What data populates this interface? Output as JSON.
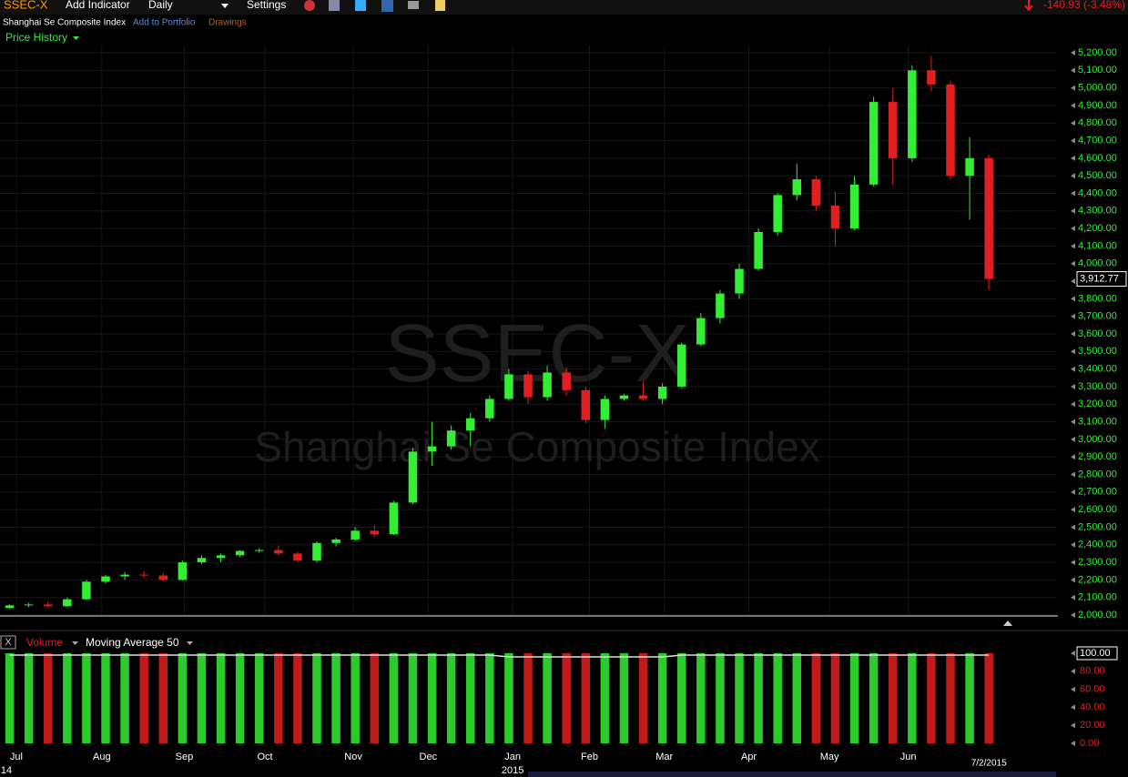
{
  "toolbar": {
    "symbol": "SSEC-X",
    "add_indicator": "Add Indicator",
    "interval": "Daily",
    "settings": "Settings",
    "change": "-140.93 (-3.48%)",
    "add_to_portfolio": "Add to Portfolio",
    "drawings": "Drawings",
    "price_history": "Price History"
  },
  "chart_data": {
    "type": "candlestick",
    "title": "SSEC-X",
    "subtitle": "Shanghai Se Composite Index",
    "x": [
      0,
      1,
      2,
      3,
      4,
      5,
      6,
      7,
      8,
      9,
      10,
      11,
      12,
      13,
      14,
      15,
      16,
      17,
      18,
      19,
      20,
      21,
      22,
      23,
      24,
      25,
      26,
      27,
      28,
      29,
      30,
      31,
      32,
      33,
      34,
      35,
      36,
      37,
      38,
      39,
      40,
      41,
      42,
      43,
      44,
      45,
      46,
      47,
      48,
      49,
      50,
      51
    ],
    "open": [
      2040,
      2055,
      2060,
      2050,
      2090,
      2190,
      2220,
      2230,
      2225,
      2200,
      2300,
      2325,
      2340,
      2365,
      2370,
      2350,
      2310,
      2410,
      2430,
      2480,
      2460,
      2640,
      2930,
      2960,
      3050,
      3120,
      3230,
      3370,
      3240,
      3380,
      3280,
      3110,
      3230,
      3250,
      3230,
      3300,
      3540,
      3690,
      3830,
      3970,
      4180,
      4390,
      4480,
      4330,
      4200,
      4450,
      4920,
      4600,
      5100,
      5020,
      4500,
      4600
    ],
    "high": [
      2060,
      2070,
      2075,
      2100,
      2200,
      2230,
      2245,
      2250,
      2240,
      2310,
      2340,
      2350,
      2370,
      2380,
      2395,
      2360,
      2420,
      2440,
      2500,
      2510,
      2650,
      2950,
      3100,
      3080,
      3150,
      3250,
      3400,
      3390,
      3420,
      3410,
      3300,
      3250,
      3260,
      3330,
      3320,
      3550,
      3720,
      3850,
      4000,
      4200,
      4400,
      4570,
      4500,
      4410,
      4500,
      4950,
      5000,
      5130,
      5180,
      5040,
      4720,
      4620
    ],
    "low": [
      2035,
      2045,
      2040,
      2045,
      2085,
      2180,
      2200,
      2210,
      2190,
      2195,
      2290,
      2300,
      2330,
      2355,
      2340,
      2300,
      2300,
      2390,
      2420,
      2440,
      2455,
      2630,
      2850,
      2940,
      2960,
      3100,
      3220,
      3200,
      3220,
      3250,
      3090,
      3060,
      3220,
      3220,
      3200,
      3290,
      3530,
      3660,
      3800,
      3960,
      4160,
      4360,
      4300,
      4100,
      4190,
      4440,
      4450,
      4580,
      4980,
      4480,
      4250,
      3850
    ],
    "close": [
      2055,
      2060,
      2050,
      2090,
      2190,
      2220,
      2230,
      2225,
      2200,
      2300,
      2325,
      2340,
      2365,
      2370,
      2350,
      2310,
      2410,
      2430,
      2480,
      2460,
      2640,
      2930,
      2960,
      3050,
      3120,
      3230,
      3370,
      3240,
      3380,
      3280,
      3110,
      3230,
      3250,
      3230,
      3300,
      3540,
      3690,
      3830,
      3970,
      4180,
      4390,
      4480,
      4330,
      4200,
      4450,
      4920,
      4600,
      5100,
      5020,
      4500,
      4600,
      3912.77
    ],
    "last_price": {
      "value": 3912.77,
      "label": "3,912.77"
    },
    "colors": {
      "up": "#33ee33",
      "down": "#e02020"
    },
    "xlim": [
      -0.5,
      54.5
    ],
    "xticks": [
      {
        "value": 0.35,
        "label": "Jul"
      },
      {
        "value": 4.8,
        "label": "Aug"
      },
      {
        "value": 9.1,
        "label": "Sep"
      },
      {
        "value": 13.3,
        "label": "Oct"
      },
      {
        "value": 17.9,
        "label": "Nov"
      },
      {
        "value": 21.8,
        "label": "Dec"
      },
      {
        "value": 26.2,
        "label": "Jan"
      },
      {
        "value": 30.2,
        "label": "Feb"
      },
      {
        "value": 34.1,
        "label": "Mar"
      },
      {
        "value": 38.5,
        "label": "Apr"
      },
      {
        "value": 42.7,
        "label": "May"
      },
      {
        "value": 46.8,
        "label": "Jun"
      }
    ],
    "year_labels": [
      {
        "value": -0.5,
        "label": "14"
      },
      {
        "value": 26.2,
        "label": "2015"
      }
    ],
    "date_label": {
      "value": 51,
      "label": "7/2/2015"
    },
    "ylim": [
      2000,
      5200
    ],
    "yticks": [
      {
        "value": 2000,
        "label": "2,000.00"
      },
      {
        "value": 2100,
        "label": "2,100.00"
      },
      {
        "value": 2200,
        "label": "2,200.00"
      },
      {
        "value": 2300,
        "label": "2,300.00"
      },
      {
        "value": 2400,
        "label": "2,400.00"
      },
      {
        "value": 2500,
        "label": "2,500.00"
      },
      {
        "value": 2600,
        "label": "2,600.00"
      },
      {
        "value": 2700,
        "label": "2,700.00"
      },
      {
        "value": 2800,
        "label": "2,800.00"
      },
      {
        "value": 2900,
        "label": "2,900.00"
      },
      {
        "value": 3000,
        "label": "3,000.00"
      },
      {
        "value": 3100,
        "label": "3,100.00"
      },
      {
        "value": 3200,
        "label": "3,200.00"
      },
      {
        "value": 3300,
        "label": "3,300.00"
      },
      {
        "value": 3400,
        "label": "3,400.00"
      },
      {
        "value": 3500,
        "label": "3,500.00"
      },
      {
        "value": 3600,
        "label": "3,600.00"
      },
      {
        "value": 3700,
        "label": "3,700.00"
      },
      {
        "value": 3800,
        "label": "3,800.00"
      },
      {
        "value": 3900,
        "label": "3,900.00"
      },
      {
        "value": 4000,
        "label": "4,000.00"
      },
      {
        "value": 4100,
        "label": "4,100.00"
      },
      {
        "value": 4200,
        "label": "4,200.00"
      },
      {
        "value": 4300,
        "label": "4,300.00"
      },
      {
        "value": 4400,
        "label": "4,400.00"
      },
      {
        "value": 4500,
        "label": "4,500.00"
      },
      {
        "value": 4600,
        "label": "4,600.00"
      },
      {
        "value": 4700,
        "label": "4,700.00"
      },
      {
        "value": 4800,
        "label": "4,800.00"
      },
      {
        "value": 4900,
        "label": "4,900.00"
      },
      {
        "value": 5000,
        "label": "5,000.00"
      },
      {
        "value": 5100,
        "label": "5,100.00"
      },
      {
        "value": 5200,
        "label": "5,200.00"
      }
    ],
    "volume": {
      "close_label": "X",
      "label": "Volume",
      "ma_label": "Moving Average 50",
      "values": [
        100,
        100,
        100,
        100,
        100,
        100,
        100,
        100,
        100,
        100,
        100,
        100,
        100,
        100,
        100,
        100,
        100,
        100,
        100,
        100,
        100,
        100,
        100,
        100,
        100,
        100,
        100,
        100,
        100,
        100,
        100,
        100,
        100,
        100,
        100,
        100,
        100,
        100,
        100,
        100,
        100,
        100,
        100,
        100,
        100,
        100,
        100,
        100,
        100,
        100,
        100,
        100
      ],
      "ma": [
        98,
        98,
        98,
        98,
        98,
        98,
        98,
        98,
        98,
        98,
        98,
        98,
        98,
        98,
        98,
        98,
        98,
        98,
        98,
        98,
        98,
        98,
        98,
        98,
        98,
        98,
        96,
        96,
        96,
        96,
        96,
        96,
        96,
        96,
        96,
        98,
        98,
        98,
        98,
        98,
        98,
        98,
        98,
        98,
        98,
        98,
        98,
        98,
        98,
        98,
        98,
        98
      ],
      "ylim": [
        0,
        100
      ],
      "yticks": [
        {
          "value": 0,
          "label": "0.00"
        },
        {
          "value": 20,
          "label": "20.00"
        },
        {
          "value": 40,
          "label": "40.00"
        },
        {
          "value": 60,
          "label": "60.00"
        },
        {
          "value": 80,
          "label": "80.00"
        },
        {
          "value": 100,
          "label": "100.00"
        }
      ]
    }
  }
}
